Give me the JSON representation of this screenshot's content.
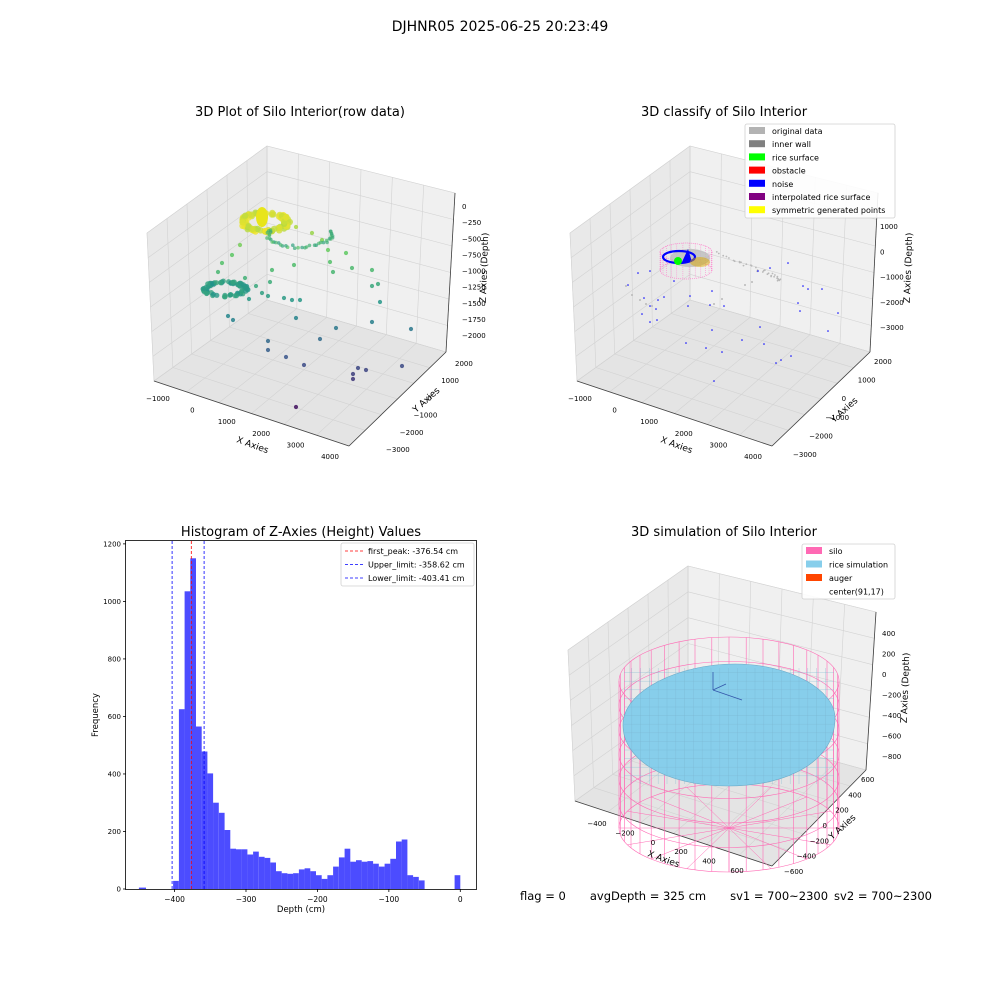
{
  "figure": {
    "suptitle": "DJHNR05 2025-06-25 20:23:49"
  },
  "panels": {
    "raw": {
      "title": "3D Plot of Silo Interior(row data)",
      "xlabel": "X Axies",
      "ylabel": "Y Axies",
      "zlabel": "Z Axies (Depth)",
      "xticks": [
        "−1000",
        "0",
        "1000",
        "2000",
        "3000",
        "4000"
      ],
      "yticks": [
        "2000",
        "1000",
        "0",
        "−1000",
        "−2000",
        "−3000"
      ],
      "zticks": [
        "0",
        "−250",
        "−500",
        "−750",
        "−1000",
        "−1250",
        "−1500",
        "−1750",
        "−2000"
      ]
    },
    "classify": {
      "title": "3D classify of Silo Interior",
      "xlabel": "X Axies",
      "ylabel": "Y Axies",
      "zlabel": "Z Axies (Depth)",
      "xticks": [
        "−1000",
        "0",
        "1000",
        "2000",
        "3000",
        "4000"
      ],
      "yticks": [
        "2000",
        "1000",
        "0",
        "−1000",
        "−2000",
        "−3000"
      ],
      "zticks": [
        "1000",
        "0",
        "−1000",
        "−2000",
        "−3000"
      ],
      "legend": [
        {
          "label": "original data",
          "color": "#b3b3b3"
        },
        {
          "label": "inner wall",
          "color": "#808080"
        },
        {
          "label": "rice surface",
          "color": "#00ff00"
        },
        {
          "label": "obstacle",
          "color": "#ff0000"
        },
        {
          "label": "noise",
          "color": "#0000ff"
        },
        {
          "label": "interpolated rice surface",
          "color": "#800080"
        },
        {
          "label": "symmetric generated points",
          "color": "#ffff00"
        }
      ]
    },
    "simulation": {
      "title": "3D simulation of Silo Interior",
      "xlabel": "X Axies",
      "ylabel": "Y Axies",
      "zlabel": "Z Axies (Depth)",
      "xticks": [
        "−400",
        "−200",
        "0",
        "200",
        "400",
        "600"
      ],
      "yticks": [
        "600",
        "400",
        "200",
        "0",
        "−200",
        "−400",
        "−600"
      ],
      "zticks": [
        "400",
        "200",
        "0",
        "−200",
        "−400",
        "−600",
        "−800"
      ],
      "legend": [
        {
          "label": "silo",
          "color": "#ff69b4"
        },
        {
          "label": "rice simulation",
          "color": "#87ceeb"
        },
        {
          "label": "auger",
          "color": "#ff4500"
        },
        {
          "label": "center(91,17)",
          "color": ""
        }
      ]
    }
  },
  "chart_data": [
    {
      "type": "histogram",
      "title": "Histogram of Z-Axies (Height) Values",
      "xlabel": "Depth (cm)",
      "ylabel": "Frequency",
      "xlim": [
        -468,
        22
      ],
      "ylim": [
        0,
        1210
      ],
      "bar_color": "#0000ff",
      "xticks": [
        -400,
        -300,
        -200,
        -100,
        0
      ],
      "xtick_labels": [
        "−400",
        "−300",
        "−200",
        "−100",
        "0"
      ],
      "yticks": [
        0,
        200,
        400,
        600,
        800,
        1000,
        1200
      ],
      "bins": [
        {
          "x0": -450,
          "x1": -440,
          "count": 5
        },
        {
          "x0": -402,
          "x1": -394,
          "count": 28
        },
        {
          "x0": -394,
          "x1": -386,
          "count": 625
        },
        {
          "x0": -386,
          "x1": -378,
          "count": 1035
        },
        {
          "x0": -378,
          "x1": -370,
          "count": 1150
        },
        {
          "x0": -370,
          "x1": -362,
          "count": 565
        },
        {
          "x0": -362,
          "x1": -354,
          "count": 478
        },
        {
          "x0": -354,
          "x1": -346,
          "count": 402
        },
        {
          "x0": -346,
          "x1": -338,
          "count": 300
        },
        {
          "x0": -338,
          "x1": -330,
          "count": 265
        },
        {
          "x0": -330,
          "x1": -322,
          "count": 205
        },
        {
          "x0": -322,
          "x1": -314,
          "count": 140
        },
        {
          "x0": -314,
          "x1": -306,
          "count": 138
        },
        {
          "x0": -306,
          "x1": -298,
          "count": 138
        },
        {
          "x0": -298,
          "x1": -290,
          "count": 120
        },
        {
          "x0": -290,
          "x1": -282,
          "count": 130
        },
        {
          "x0": -282,
          "x1": -274,
          "count": 112
        },
        {
          "x0": -274,
          "x1": -266,
          "count": 108
        },
        {
          "x0": -266,
          "x1": -258,
          "count": 92
        },
        {
          "x0": -258,
          "x1": -250,
          "count": 62
        },
        {
          "x0": -250,
          "x1": -242,
          "count": 55
        },
        {
          "x0": -242,
          "x1": -234,
          "count": 53
        },
        {
          "x0": -234,
          "x1": -226,
          "count": 55
        },
        {
          "x0": -226,
          "x1": -218,
          "count": 68
        },
        {
          "x0": -218,
          "x1": -210,
          "count": 72
        },
        {
          "x0": -210,
          "x1": -202,
          "count": 62
        },
        {
          "x0": -202,
          "x1": -194,
          "count": 48
        },
        {
          "x0": -194,
          "x1": -186,
          "count": 35
        },
        {
          "x0": -186,
          "x1": -178,
          "count": 48
        },
        {
          "x0": -178,
          "x1": -170,
          "count": 78
        },
        {
          "x0": -170,
          "x1": -162,
          "count": 110
        },
        {
          "x0": -162,
          "x1": -154,
          "count": 140
        },
        {
          "x0": -154,
          "x1": -146,
          "count": 95
        },
        {
          "x0": -146,
          "x1": -138,
          "count": 100
        },
        {
          "x0": -138,
          "x1": -130,
          "count": 95
        },
        {
          "x0": -130,
          "x1": -122,
          "count": 97
        },
        {
          "x0": -122,
          "x1": -114,
          "count": 88
        },
        {
          "x0": -114,
          "x1": -106,
          "count": 78
        },
        {
          "x0": -106,
          "x1": -98,
          "count": 88
        },
        {
          "x0": -98,
          "x1": -90,
          "count": 105
        },
        {
          "x0": -90,
          "x1": -82,
          "count": 165
        },
        {
          "x0": -82,
          "x1": -74,
          "count": 172
        },
        {
          "x0": -74,
          "x1": -66,
          "count": 48
        },
        {
          "x0": -66,
          "x1": -58,
          "count": 42
        },
        {
          "x0": -58,
          "x1": -50,
          "count": 30
        },
        {
          "x0": -42,
          "x1": -34,
          "count": 0
        },
        {
          "x0": -8,
          "x1": 0,
          "count": 48
        }
      ],
      "lines": [
        {
          "label": "first_peak: -376.54 cm",
          "x": -376.54,
          "color": "#ff0000"
        },
        {
          "label": "Upper_limit: -358.62 cm",
          "x": -358.62,
          "color": "#0000ff"
        },
        {
          "label": "Lower_limit: -403.41 cm",
          "x": -403.41,
          "color": "#0000ff"
        }
      ]
    }
  ],
  "status": {
    "flag": "flag = 0",
    "avg_depth": "avgDepth = 325 cm",
    "sv1": "sv1 = 700~2300",
    "sv2": "sv2 = 700~2300"
  }
}
